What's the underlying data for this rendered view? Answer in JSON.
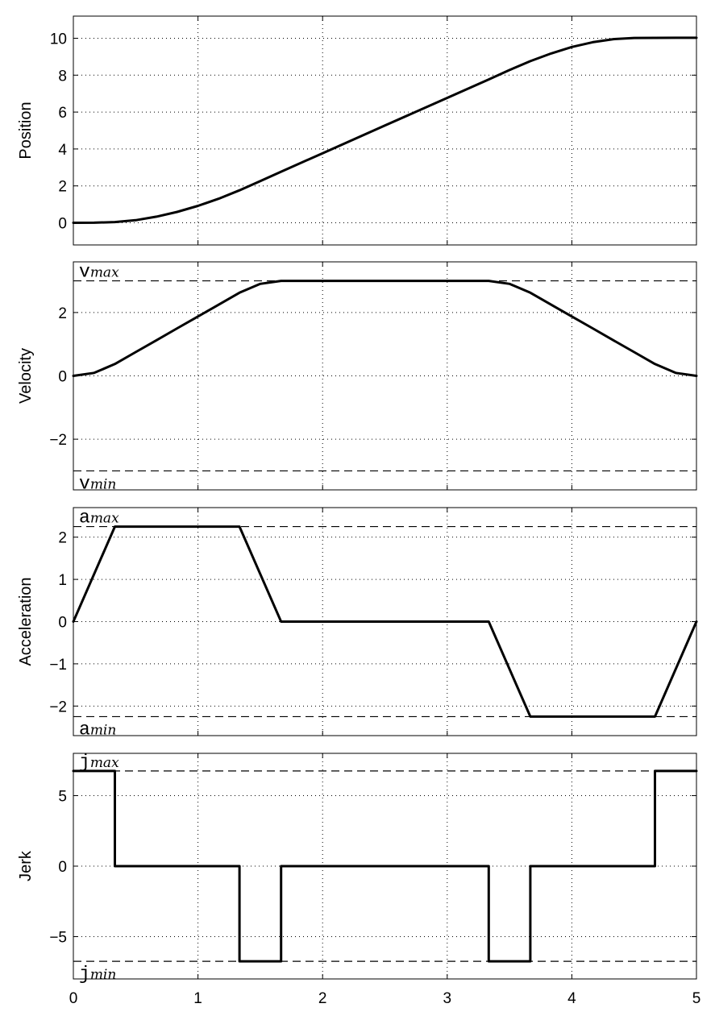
{
  "chart_data": [
    {
      "type": "line",
      "title": "",
      "xlabel": "",
      "ylabel": "Position",
      "xlim": [
        0,
        5
      ],
      "ylim": [
        -1.2,
        11.2
      ],
      "grid": true,
      "xticks": [
        0,
        1,
        2,
        3,
        4,
        5
      ],
      "xtick_labels": [],
      "yticks": [
        0,
        2,
        4,
        6,
        8,
        10
      ],
      "ytick_labels": [
        "0",
        "2",
        "4",
        "6",
        "8",
        "10"
      ],
      "limits": [],
      "series": [
        {
          "x": [
            0,
            0.1667,
            0.3333,
            0.5,
            0.6667,
            0.8333,
            1.0,
            1.1667,
            1.3333,
            1.5,
            1.6667,
            2.0,
            2.5,
            3.0,
            3.3333,
            3.5,
            3.6667,
            3.8333,
            4.0,
            4.1667,
            4.3333,
            4.5,
            4.6667,
            4.8333,
            5.0
          ],
          "y": [
            0,
            0.005,
            0.042,
            0.141,
            0.333,
            0.592,
            0.917,
            1.306,
            1.759,
            2.259,
            2.769,
            3.769,
            5.269,
            6.769,
            7.769,
            8.278,
            8.759,
            9.176,
            9.528,
            9.787,
            9.951,
            10.018,
            10.019,
            10.024,
            10.024
          ]
        }
      ]
    },
    {
      "type": "line",
      "title": "",
      "xlabel": "",
      "ylabel": "Velocity",
      "xlim": [
        0,
        5
      ],
      "ylim": [
        -3.6,
        3.6
      ],
      "grid": true,
      "xticks": [
        0,
        1,
        2,
        3,
        4,
        5
      ],
      "xtick_labels": [],
      "yticks": [
        -2,
        0,
        2
      ],
      "ytick_labels": [
        "−2",
        "0",
        "2"
      ],
      "limits": [
        {
          "value": 3.0,
          "label": "v",
          "sub": "max",
          "place": "above"
        },
        {
          "value": -3.0,
          "label": "v",
          "sub": "min",
          "place": "below"
        }
      ],
      "series": [
        {
          "x": [
            0,
            0.1667,
            0.3333,
            0.5,
            0.6667,
            0.8333,
            1.0,
            1.1667,
            1.3333,
            1.5,
            1.6667,
            2.0,
            3.0,
            3.3333,
            3.5,
            3.6667,
            3.8333,
            4.0,
            4.1667,
            4.3333,
            4.5,
            4.6667,
            4.8333,
            5.0
          ],
          "y": [
            0,
            0.094,
            0.375,
            0.75,
            1.125,
            1.5,
            1.875,
            2.25,
            2.625,
            2.906,
            3.0,
            3.0,
            3.0,
            3.0,
            2.906,
            2.625,
            2.25,
            1.875,
            1.5,
            1.125,
            0.75,
            0.375,
            0.094,
            0
          ]
        }
      ]
    },
    {
      "type": "line",
      "title": "",
      "xlabel": "",
      "ylabel": "Acceleration",
      "xlim": [
        0,
        5
      ],
      "ylim": [
        -2.7,
        2.7
      ],
      "grid": true,
      "xticks": [
        0,
        1,
        2,
        3,
        4,
        5
      ],
      "xtick_labels": [],
      "yticks": [
        -2,
        -1,
        0,
        1,
        2
      ],
      "ytick_labels": [
        "−2",
        "−1",
        "0",
        "1",
        "2"
      ],
      "limits": [
        {
          "value": 2.25,
          "label": "a",
          "sub": "max",
          "place": "above"
        },
        {
          "value": -2.25,
          "label": "a",
          "sub": "min",
          "place": "below"
        }
      ],
      "series": [
        {
          "x": [
            0,
            0.3333,
            1.3333,
            1.6667,
            3.3333,
            3.6667,
            4.6667,
            5.0
          ],
          "y": [
            0,
            2.25,
            2.25,
            0,
            0,
            -2.25,
            -2.25,
            0
          ]
        }
      ]
    },
    {
      "type": "line",
      "title": "",
      "xlabel": "",
      "ylabel": "Jerk",
      "xlim": [
        0,
        5
      ],
      "ylim": [
        -8,
        8
      ],
      "grid": true,
      "xticks": [
        0,
        1,
        2,
        3,
        4,
        5
      ],
      "xtick_labels": [
        "0",
        "1",
        "2",
        "3",
        "4",
        "5"
      ],
      "yticks": [
        -5,
        0,
        5
      ],
      "ytick_labels": [
        "−5",
        "0",
        "5"
      ],
      "limits": [
        {
          "value": 6.75,
          "label": "j",
          "sub": "max",
          "place": "above"
        },
        {
          "value": -6.75,
          "label": "j",
          "sub": "min",
          "place": "below"
        }
      ],
      "series": [
        {
          "x": [
            0,
            0.3333,
            0.3333,
            1.3333,
            1.3333,
            1.6667,
            1.6667,
            3.3333,
            3.3333,
            3.6667,
            3.6667,
            4.6667,
            4.6667,
            5.0
          ],
          "y": [
            6.75,
            6.75,
            0,
            0,
            -6.75,
            -6.75,
            0,
            0,
            -6.75,
            -6.75,
            0,
            0,
            6.75,
            6.75
          ]
        }
      ]
    }
  ]
}
